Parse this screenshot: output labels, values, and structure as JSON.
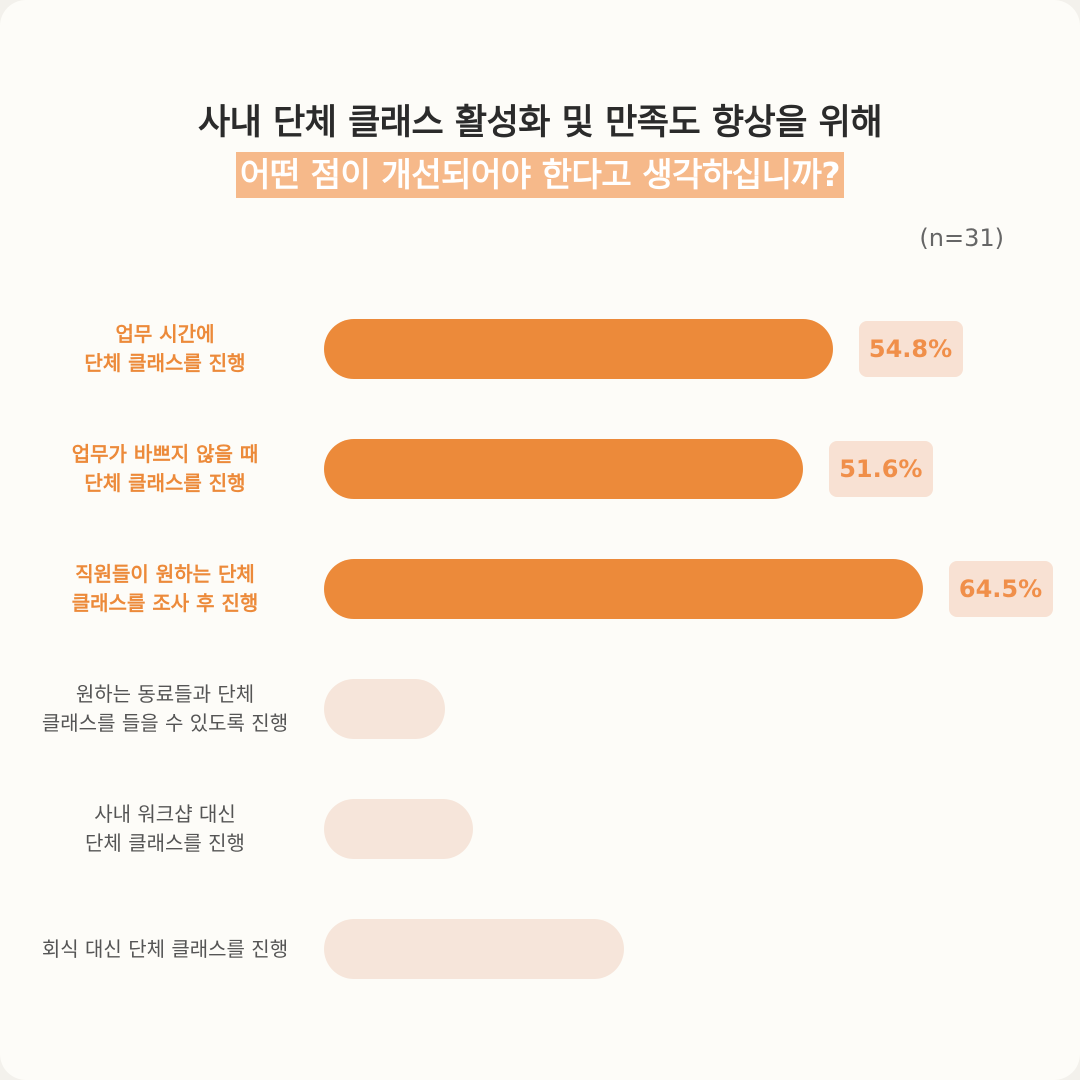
{
  "title": {
    "line1": "사내 단체 클래스 활성화 및 만족도 향상을 위해",
    "line2": "어떤 점이 개선되어야 한다고 생각하십니까?"
  },
  "sample_size": "(n=31)",
  "colors": {
    "highlight": "#ec8a3a",
    "dim": "#f6e5da",
    "badge_bg": "#f8e1d3",
    "badge_text": "#f08f4a"
  },
  "chart_data": {
    "type": "bar",
    "orientation": "horizontal",
    "categories": [
      [
        "업무 시간에",
        "단체 클래스를 진행"
      ],
      [
        "업무가 바쁘지 않을 때",
        "단체 클래스를 진행"
      ],
      [
        "직원들이 원하는 단체",
        "클래스를 조사 후 진행"
      ],
      [
        "원하는 동료들과 단체",
        "클래스를 들을 수 있도록 진행"
      ],
      [
        "사내 워크샵 대신",
        "단체 클래스를 진행"
      ],
      [
        "회식 대신 단체 클래스를 진행"
      ]
    ],
    "values": [
      54.8,
      51.6,
      64.5,
      13.0,
      16.1,
      32.3
    ],
    "value_labels": [
      "54.8%",
      "51.6%",
      "64.5%",
      "",
      "",
      ""
    ],
    "highlighted": [
      true,
      true,
      true,
      false,
      false,
      false
    ],
    "xlim": [
      0,
      100
    ],
    "grid": false
  }
}
